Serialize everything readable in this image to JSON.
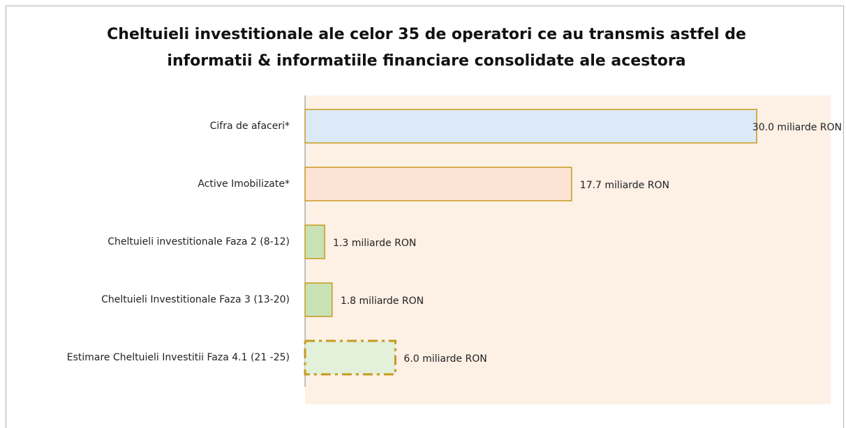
{
  "chart_data": {
    "type": "hbar",
    "title": [
      "Cheltuieli investitionale ale celor 35 de operatori ce au transmis astfel de",
      "informatii & informatiile financiare consolidate ale acestora"
    ],
    "categories": [
      "Cifra de afaceri*",
      "Active Imobilizate*",
      "Cheltuieli investitionale Faza 2 (8-12)",
      "Cheltuieli Investitionale Faza 3 (13-20)",
      "Estimare Cheltuieli Investitii Faza 4.1 (21 -25)"
    ],
    "values": [
      30.0,
      17.7,
      1.3,
      1.8,
      6.0
    ],
    "value_labels": [
      "30.0 miliarde RON",
      "17.7 miliarde RON",
      "1.3 miliarde RON",
      "1.8 miliarde RON",
      "6.0 miliarde RON"
    ],
    "colors": [
      "#dce9f7",
      "#fbe4d6",
      "#c8e2b6",
      "#c8e2b6",
      "#e3f0da"
    ],
    "border_color": "#c49a1e",
    "border_styles": [
      "solid",
      "solid",
      "solid",
      "solid",
      "dashdot"
    ]
  }
}
